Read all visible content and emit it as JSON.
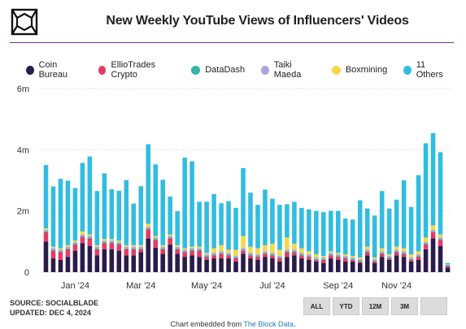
{
  "header": {
    "title": "New Weekly YouTube Views of Influencers' Videos"
  },
  "legend": [
    {
      "label": "Coin Bureau",
      "color": "#2b1b4a"
    },
    {
      "label": "EllioTrades Crypto",
      "color": "#e63a63"
    },
    {
      "label": "DataDash",
      "color": "#35b4a3"
    },
    {
      "label": "Taiki Maeda",
      "color": "#a8a6de"
    },
    {
      "label": "Boxmining",
      "color": "#f5d84a"
    },
    {
      "label": "11 Others",
      "color": "#31bde0"
    }
  ],
  "footer": {
    "source": "SOURCE: SOCIALBLADE",
    "updated": "UPDATED: DEC 4, 2024",
    "embed_prefix": "Chart embedded from ",
    "embed_link": "The Block Data",
    "embed_suffix": "."
  },
  "range_buttons": [
    "ALL",
    "YTD",
    "12M",
    "3M",
    ""
  ],
  "chart_data": {
    "type": "bar",
    "stacked": true,
    "y_ticks": [
      "0",
      "2m",
      "4m",
      "6m"
    ],
    "ylim": [
      0,
      6000000
    ],
    "grid": true,
    "x_tick_labels": [
      {
        "label": "Jan '24",
        "bar_index": 4
      },
      {
        "label": "Mar '24",
        "bar_index": 13
      },
      {
        "label": "May '24",
        "bar_index": 22
      },
      {
        "label": "Jul '24",
        "bar_index": 31
      },
      {
        "label": "Sep '24",
        "bar_index": 40
      },
      {
        "label": "Nov '24",
        "bar_index": 48
      }
    ],
    "series": [
      {
        "name": "Coin Bureau",
        "color": "#2b1b4a",
        "values": [
          1000000,
          450000,
          400000,
          500000,
          700000,
          950000,
          850000,
          550000,
          750000,
          750000,
          700000,
          550000,
          550000,
          650000,
          1100000,
          800000,
          600000,
          900000,
          600000,
          500000,
          550000,
          500000,
          400000,
          450000,
          450000,
          450000,
          350000,
          600000,
          450000,
          400000,
          500000,
          450000,
          350000,
          500000,
          550000,
          450000,
          400000,
          350000,
          300000,
          450000,
          400000,
          350000,
          350000,
          300000,
          550000,
          300000,
          500000,
          400000,
          550000,
          500000,
          350000,
          400000,
          750000,
          1100000,
          850000,
          150000
        ]
      },
      {
        "name": "EllioTrades Crypto",
        "color": "#e63a63",
        "values": [
          300000,
          250000,
          250000,
          250000,
          200000,
          200000,
          250000,
          200000,
          200000,
          200000,
          200000,
          200000,
          200000,
          100000,
          300000,
          250000,
          150000,
          200000,
          150000,
          150000,
          150000,
          200000,
          100000,
          100000,
          150000,
          100000,
          100000,
          100000,
          100000,
          100000,
          100000,
          100000,
          100000,
          150000,
          100000,
          100000,
          100000,
          50000,
          100000,
          100000,
          100000,
          100000,
          50000,
          50000,
          100000,
          50000,
          100000,
          50000,
          100000,
          100000,
          50000,
          100000,
          150000,
          200000,
          200000,
          50000
        ]
      },
      {
        "name": "DataDash",
        "color": "#35b4a3",
        "values": [
          30000,
          30000,
          30000,
          30000,
          30000,
          30000,
          30000,
          30000,
          30000,
          30000,
          30000,
          30000,
          30000,
          30000,
          30000,
          30000,
          30000,
          30000,
          30000,
          30000,
          30000,
          30000,
          30000,
          30000,
          30000,
          30000,
          30000,
          30000,
          30000,
          30000,
          30000,
          30000,
          30000,
          30000,
          30000,
          30000,
          30000,
          30000,
          30000,
          30000,
          30000,
          30000,
          30000,
          30000,
          30000,
          30000,
          30000,
          30000,
          30000,
          30000,
          30000,
          30000,
          30000,
          30000,
          30000,
          30000
        ]
      },
      {
        "name": "Taiki Maeda",
        "color": "#a8a6de",
        "values": [
          50000,
          50000,
          50000,
          50000,
          50000,
          50000,
          50000,
          50000,
          50000,
          50000,
          50000,
          50000,
          50000,
          50000,
          50000,
          50000,
          50000,
          50000,
          50000,
          50000,
          50000,
          50000,
          50000,
          50000,
          50000,
          50000,
          50000,
          50000,
          50000,
          50000,
          50000,
          50000,
          50000,
          50000,
          50000,
          50000,
          50000,
          50000,
          50000,
          50000,
          50000,
          50000,
          50000,
          50000,
          50000,
          50000,
          50000,
          50000,
          50000,
          50000,
          50000,
          50000,
          50000,
          50000,
          50000,
          20000
        ]
      },
      {
        "name": "Boxmining",
        "color": "#f5d84a",
        "values": [
          50000,
          50000,
          50000,
          50000,
          50000,
          100000,
          50000,
          50000,
          50000,
          50000,
          50000,
          50000,
          50000,
          50000,
          100000,
          50000,
          50000,
          50000,
          50000,
          50000,
          50000,
          50000,
          50000,
          150000,
          200000,
          100000,
          200000,
          400000,
          200000,
          200000,
          200000,
          300000,
          200000,
          400000,
          200000,
          150000,
          100000,
          100000,
          50000,
          50000,
          50000,
          50000,
          50000,
          50000,
          100000,
          50000,
          100000,
          50000,
          100000,
          100000,
          100000,
          100000,
          150000,
          150000,
          100000,
          10000
        ]
      },
      {
        "name": "11 Others",
        "color": "#31bde0",
        "values": [
          2070000,
          1970000,
          2270000,
          2110000,
          1720000,
          2240000,
          2550000,
          1770000,
          2150000,
          1630000,
          1630000,
          2130000,
          1360000,
          1930000,
          2600000,
          2340000,
          2140000,
          1240000,
          1110000,
          2960000,
          2790000,
          1470000,
          1670000,
          1770000,
          1370000,
          1590000,
          1370000,
          2220000,
          1770000,
          1420000,
          1820000,
          1470000,
          1470000,
          1090000,
          1370000,
          1320000,
          1370000,
          1420000,
          1430000,
          1320000,
          1370000,
          1170000,
          1190000,
          1870000,
          1250000,
          1370000,
          1870000,
          1500000,
          1540000,
          2220000,
          1550000,
          2490000,
          3080000,
          3010000,
          2690000,
          40000
        ]
      }
    ]
  }
}
